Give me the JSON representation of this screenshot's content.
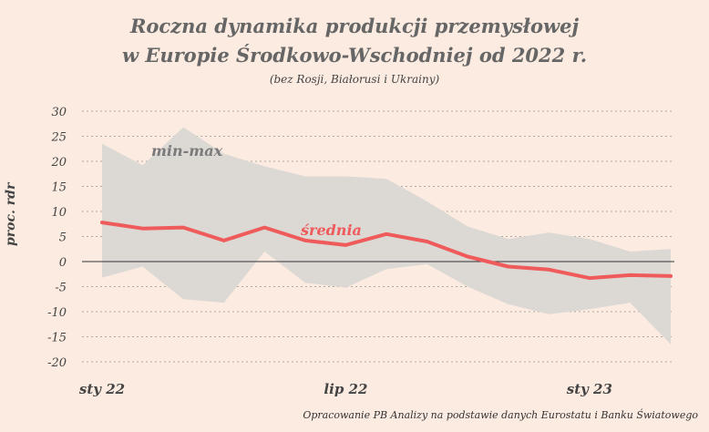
{
  "header": {
    "title_line1": "Roczna dynamika produkcji przemysłowej",
    "title_line2": "w Europie Środkowo-Wschodniej  od 2022 r.",
    "subtitle": "(bez Rosji, Białorusi i Ukrainy)"
  },
  "footer": {
    "source": "Opracowanie PB Analizy na podstawie danych Eurostatu i Banku Światowego"
  },
  "colors": {
    "background": "#fbebe0",
    "band": "#dcd8d4",
    "average_line": "#ef5a5a",
    "gridline": "#b0a8a0",
    "zero_line": "#333333"
  },
  "chart_data": {
    "type": "area",
    "ylabel": "proc. rdr",
    "ylim": [
      -20,
      30
    ],
    "y_ticks": [
      "30",
      "25",
      "20",
      "15",
      "10",
      "5",
      "0",
      "-5",
      "-10",
      "-15",
      "-20"
    ],
    "x_ticks": [
      {
        "label": "sty 22",
        "index": 0
      },
      {
        "label": "lip 22",
        "index": 6
      },
      {
        "label": "sty 23",
        "index": 12
      }
    ],
    "x": [
      "2022-01",
      "2022-02",
      "2022-03",
      "2022-04",
      "2022-05",
      "2022-06",
      "2022-07",
      "2022-08",
      "2022-09",
      "2022-10",
      "2022-11",
      "2022-12",
      "2023-01",
      "2023-02",
      "2023-03"
    ],
    "annotations": [
      {
        "text": "min-max",
        "series": "band"
      },
      {
        "text": "średnia",
        "series": "average"
      }
    ],
    "series": [
      {
        "name": "średnia",
        "key": "average",
        "values": [
          7.8,
          6.6,
          6.8,
          4.2,
          6.8,
          4.2,
          3.3,
          5.5,
          4.0,
          1.0,
          -1.0,
          -1.6,
          -3.3,
          -2.7,
          -2.9
        ]
      },
      {
        "name": "min-max",
        "key": "max",
        "values": [
          23.5,
          19.2,
          26.8,
          21.5,
          19.0,
          17.0,
          17.0,
          16.5,
          12.0,
          7.0,
          4.5,
          5.8,
          4.5,
          2.0,
          2.5
        ]
      },
      {
        "name": "min-max",
        "key": "min",
        "values": [
          -3.2,
          -1.0,
          -7.5,
          -8.2,
          2.0,
          -4.2,
          -5.2,
          -1.5,
          -0.5,
          -5.0,
          -8.5,
          -10.5,
          -9.5,
          -8.2,
          -16.5
        ]
      }
    ],
    "grid": "horizontal-dashed",
    "legend": "none"
  }
}
